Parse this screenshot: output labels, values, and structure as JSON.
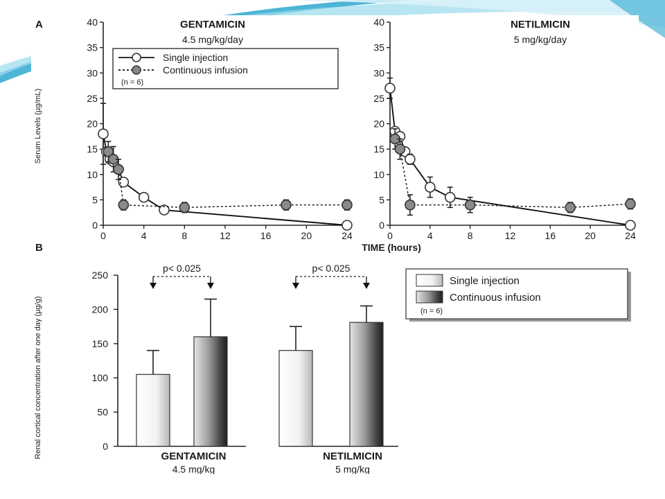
{
  "slide": {
    "accent_colors": [
      "#2fa8cf",
      "#9fdcec",
      "#d8f1f8"
    ]
  },
  "chart_data": [
    {
      "panel": "A",
      "type": "line",
      "drug": "GENTAMICIN",
      "dose": "4.5 mg/kg/day",
      "ylabel": "Serum Levels (µg/mL)",
      "xlabel": "TIME (hours)",
      "ylim": [
        0,
        40
      ],
      "yticks": [
        0,
        5,
        10,
        15,
        20,
        25,
        30,
        35,
        40
      ],
      "xlim": [
        0,
        24
      ],
      "xticks": [
        0,
        4,
        8,
        12,
        16,
        20,
        24
      ],
      "legend": {
        "single": "Single injection",
        "continuous": "Continuous infusion",
        "n": "(n = 6)"
      },
      "series": [
        {
          "name": "Single injection",
          "x": [
            0,
            0.33,
            0.67,
            1,
            1.5,
            2,
            4,
            6,
            24
          ],
          "y": [
            18,
            14.5,
            13,
            12.5,
            11,
            8.5,
            5.5,
            3,
            0
          ],
          "err": [
            6,
            0,
            0,
            0,
            0,
            0,
            0,
            0,
            0
          ]
        },
        {
          "name": "Continuous infusion",
          "x": [
            0.5,
            1,
            1.5,
            2,
            8,
            18,
            24
          ],
          "y": [
            14.5,
            13,
            11,
            4,
            3.5,
            4,
            4
          ],
          "err": [
            2,
            2.5,
            2,
            1,
            1,
            1,
            1
          ]
        }
      ]
    },
    {
      "panel": "A-right",
      "type": "line",
      "drug": "NETILMICIN",
      "dose": "5 mg/kg/day",
      "ylim": [
        0,
        40
      ],
      "yticks": [
        0,
        5,
        10,
        15,
        20,
        25,
        30,
        35,
        40
      ],
      "xlim": [
        0,
        24
      ],
      "xticks": [
        0,
        4,
        8,
        12,
        16,
        20,
        24
      ],
      "series": [
        {
          "name": "Single injection",
          "x": [
            0,
            0.5,
            1,
            1.5,
            2,
            4,
            6,
            24
          ],
          "y": [
            27,
            18.5,
            17.5,
            14.5,
            13,
            7.5,
            5.5,
            0
          ],
          "err": [
            2,
            0,
            0,
            0,
            1,
            2,
            2,
            0
          ]
        },
        {
          "name": "Continuous infusion",
          "x": [
            0.5,
            1,
            2,
            8,
            18,
            24
          ],
          "y": [
            17,
            15,
            4,
            4,
            3.5,
            4.2
          ],
          "err": [
            2,
            2,
            2,
            1.5,
            1,
            1
          ]
        }
      ]
    },
    {
      "panel": "B",
      "type": "bar",
      "ylabel": "Renal cortical concentration after one day (µg/g)",
      "ylim": [
        0,
        250
      ],
      "yticks": [
        0,
        50,
        100,
        150,
        200,
        250
      ],
      "groups": [
        {
          "name": "GENTAMICIN",
          "dose": "4.5 mg/kg",
          "single": 105,
          "single_err": 35,
          "cont": 160,
          "cont_err": 55,
          "p": "p< 0.025"
        },
        {
          "name": "NETILMICIN",
          "dose": "5 mg/kg",
          "single": 140,
          "single_err": 35,
          "cont": 181,
          "cont_err": 24,
          "p": "p< 0.025"
        }
      ],
      "legend": {
        "single": "Single injection",
        "continuous": "Continuous infusion",
        "n": "(n = 6)"
      }
    }
  ],
  "labels": {
    "panel_a": "A",
    "panel_b": "B"
  }
}
